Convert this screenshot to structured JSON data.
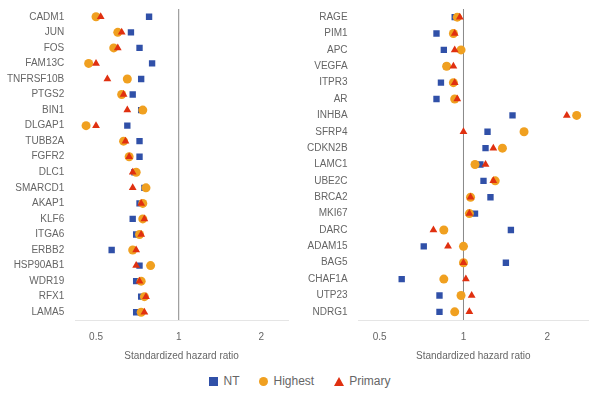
{
  "chart_data": [
    {
      "type": "scatter",
      "categories": [
        "CADM1",
        "JUN",
        "FOS",
        "FAM13C",
        "TNFRSF10B",
        "PTGS2",
        "BIN1",
        "DLGAP1",
        "TUBB2A",
        "FGFR2",
        "DLC1",
        "SMARCD1",
        "AKAP1",
        "KLF6",
        "ITGA6",
        "ERBB2",
        "HSP90AB1",
        "WDR19",
        "RFX1",
        "LAMA5"
      ],
      "series": [
        {
          "name": "NT",
          "color": "#3050a8",
          "marker": "square",
          "values": [
            0.78,
            0.67,
            0.72,
            0.8,
            0.73,
            0.68,
            0.73,
            0.65,
            0.72,
            0.72,
            0.69,
            0.75,
            0.72,
            0.68,
            0.7,
            0.57,
            0.72,
            0.7,
            0.73,
            0.7
          ]
        },
        {
          "name": "Highest",
          "color": "#f0a020",
          "marker": "circle",
          "values": [
            0.5,
            0.6,
            0.58,
            0.47,
            0.65,
            0.62,
            0.74,
            0.46,
            0.63,
            0.66,
            0.7,
            0.76,
            0.74,
            0.74,
            0.72,
            0.68,
            0.79,
            0.73,
            0.75,
            0.73
          ]
        },
        {
          "name": "Primary",
          "color": "#e03010",
          "marker": "triangle",
          "values": [
            0.52,
            0.62,
            0.6,
            0.5,
            0.55,
            0.63,
            0.65,
            0.5,
            0.64,
            0.66,
            0.68,
            0.68,
            0.73,
            0.75,
            0.73,
            0.7,
            0.7,
            0.72,
            0.76,
            0.75
          ]
        }
      ],
      "xlabel": "Standardized hazard ratio",
      "xlim": [
        0.42,
        2.5
      ],
      "xticks": [
        0.5,
        1,
        2
      ],
      "log": "x",
      "grid": false,
      "legend": "bottom",
      "vline": 1.0
    },
    {
      "type": "scatter",
      "categories": [
        "RAGE",
        "PIM1",
        "APC",
        "VEGFA",
        "ITPR3",
        "AR",
        "INHBA",
        "SFRP4",
        "CDKN2B",
        "LAMC1",
        "UBE2C",
        "BRCA2",
        "MKI67",
        "DARC",
        "ADAM15",
        "BAG5",
        "CHAF1A",
        "UTP23",
        "NDRG1"
      ],
      "series": [
        {
          "name": "NT",
          "color": "#3050a8",
          "marker": "square",
          "values": [
            0.93,
            0.8,
            0.85,
            0.87,
            0.83,
            0.8,
            1.5,
            1.22,
            1.2,
            1.15,
            1.18,
            1.25,
            1.1,
            1.48,
            0.72,
            1.42,
            0.6,
            0.82,
            0.82
          ]
        },
        {
          "name": "Highest",
          "color": "#f0a020",
          "marker": "circle",
          "values": [
            0.95,
            0.92,
            0.98,
            0.87,
            0.92,
            0.93,
            2.55,
            1.65,
            1.38,
            1.1,
            1.3,
            1.06,
            1.05,
            0.85,
            1.0,
            1.0,
            0.85,
            0.98,
            0.93
          ]
        },
        {
          "name": "Primary",
          "color": "#e03010",
          "marker": "triangle",
          "values": [
            0.97,
            0.93,
            0.93,
            0.92,
            0.93,
            0.95,
            2.35,
            1.0,
            1.28,
            1.2,
            1.28,
            1.06,
            1.05,
            0.78,
            0.88,
            1.0,
            1.02,
            1.07,
            1.05
          ]
        }
      ],
      "xlabel": "Standardized hazard ratio",
      "xlim": [
        0.42,
        2.8
      ],
      "xticks": [
        0.5,
        1,
        2
      ],
      "log": "x",
      "grid": false,
      "legend": "bottom",
      "vline": 1.0
    }
  ]
}
